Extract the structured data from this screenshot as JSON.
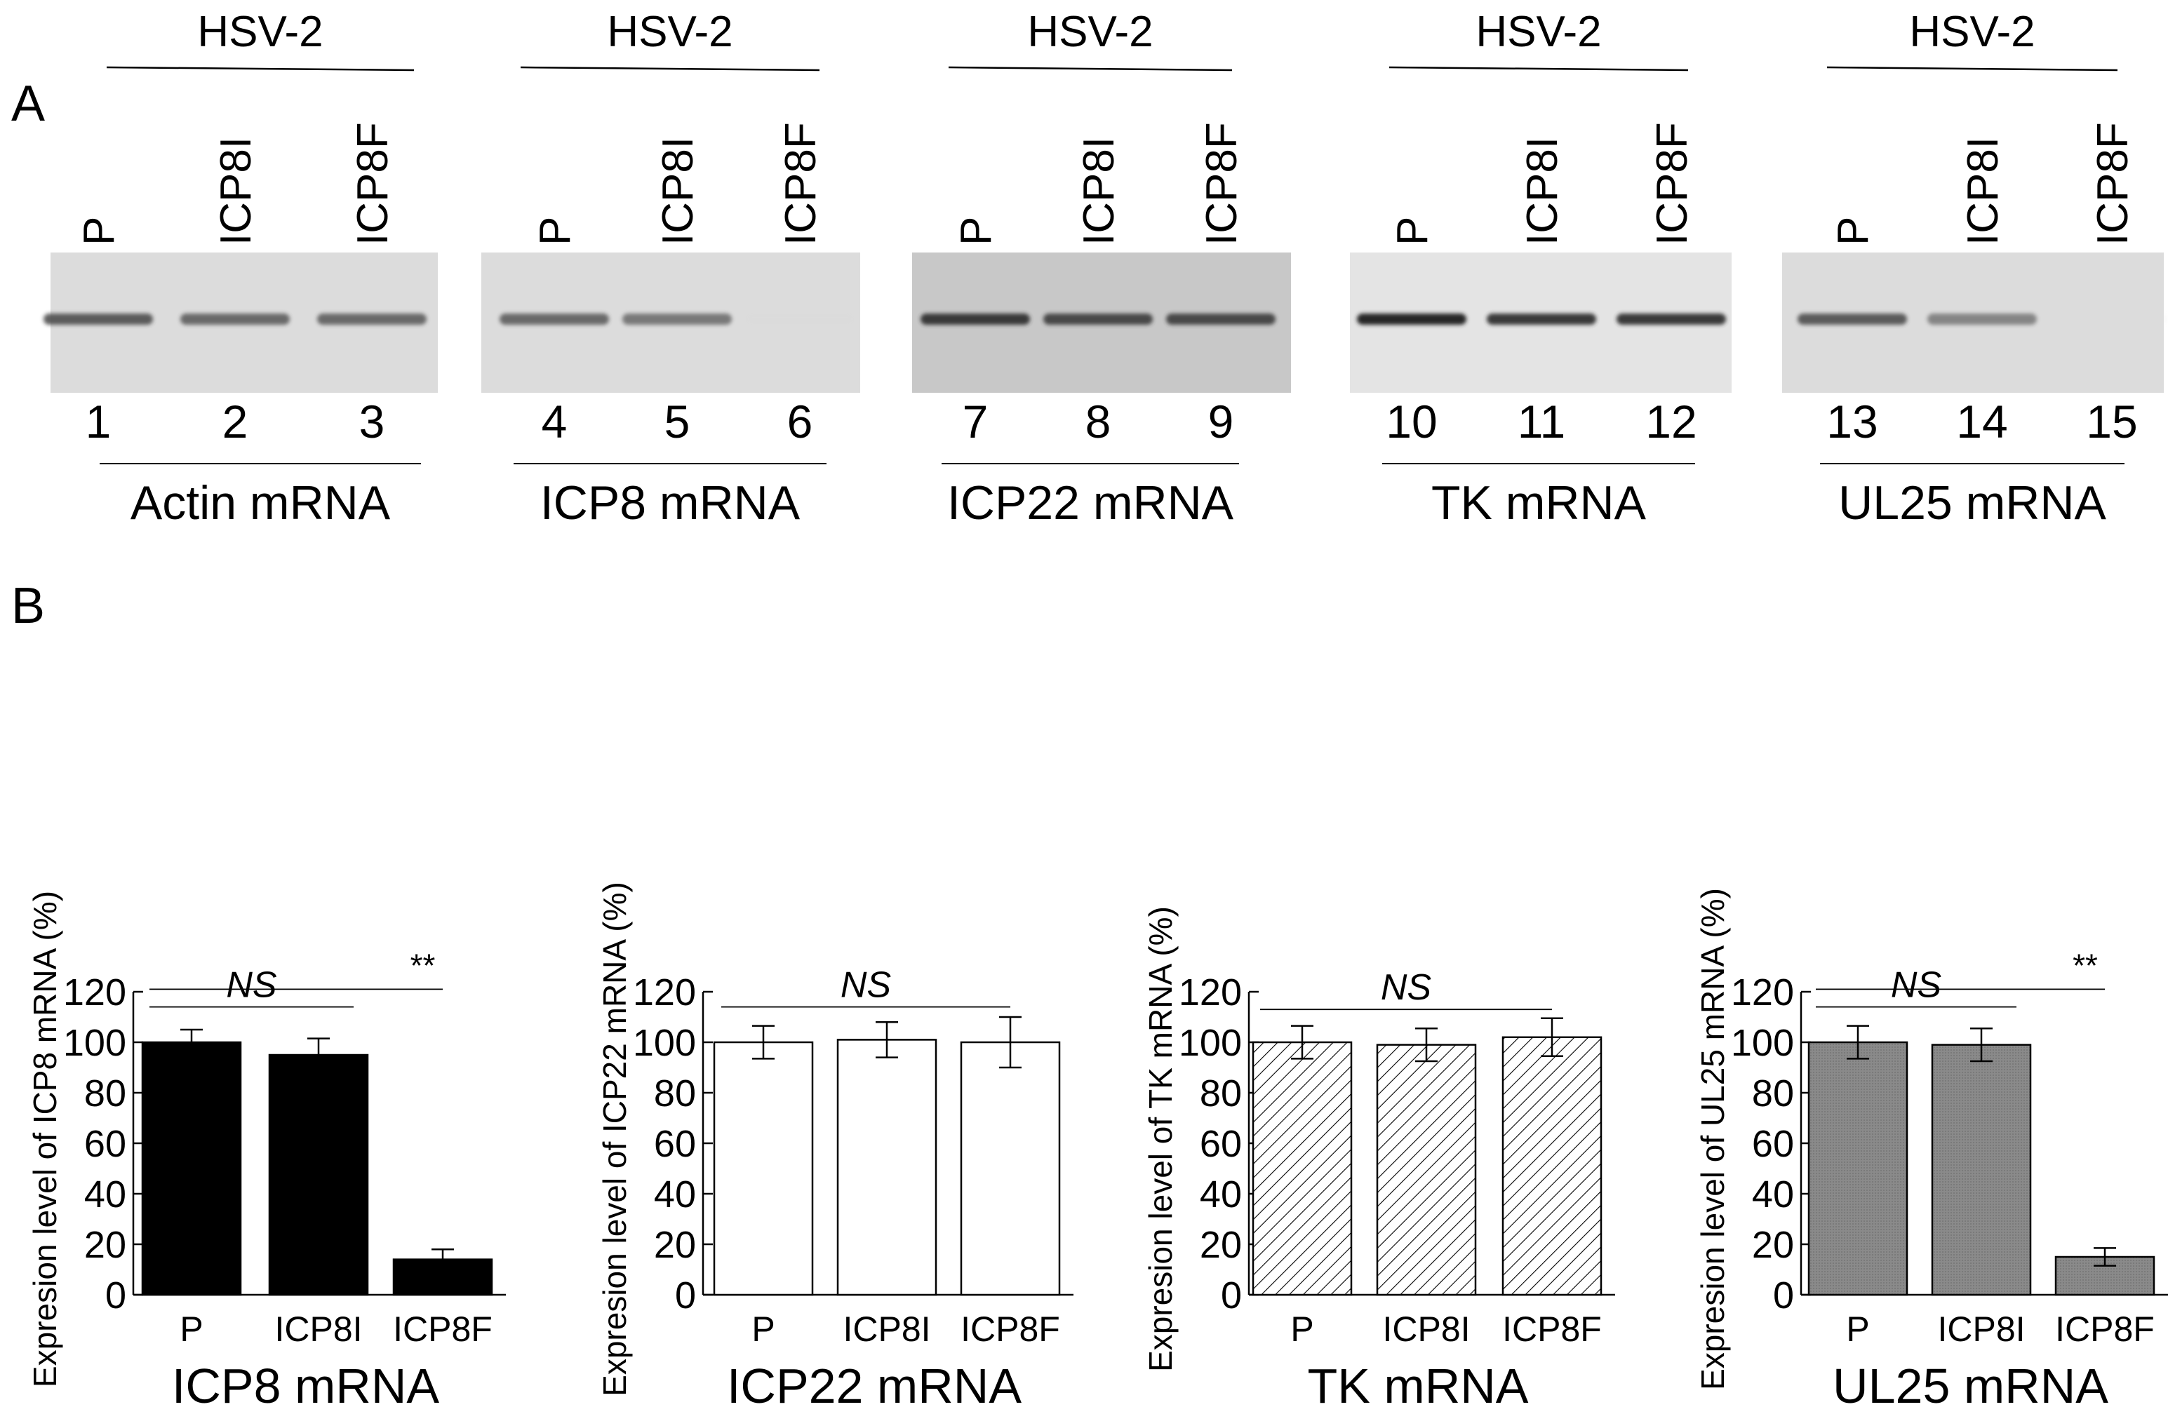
{
  "panel_labels": {
    "a": "A",
    "b": "B"
  },
  "gels": [
    {
      "group_label": "HSV-2",
      "lanes": [
        "P",
        "ICP8I",
        "ICP8F"
      ],
      "lane_numbers": [
        "1",
        "2",
        "3"
      ],
      "caption": "Actin mRNA",
      "band_intensity": [
        0.85,
        0.8,
        0.8
      ]
    },
    {
      "group_label": "HSV-2",
      "lanes": [
        "P",
        "ICP8I",
        "ICP8F"
      ],
      "lane_numbers": [
        "4",
        "5",
        "6"
      ],
      "caption": "ICP8 mRNA",
      "band_intensity": [
        0.8,
        0.75,
        0.08
      ]
    },
    {
      "group_label": "HSV-2",
      "lanes": [
        "P",
        "ICP8I",
        "ICP8F"
      ],
      "lane_numbers": [
        "7",
        "8",
        "9"
      ],
      "caption": "ICP22 mRNA",
      "band_intensity": [
        0.95,
        0.9,
        0.9
      ]
    },
    {
      "group_label": "HSV-2",
      "lanes": [
        "P",
        "ICP8I",
        "ICP8F"
      ],
      "lane_numbers": [
        "10",
        "11",
        "12"
      ],
      "caption": "TK mRNA",
      "band_intensity": [
        1.0,
        0.95,
        0.95
      ]
    },
    {
      "group_label": "HSV-2",
      "lanes": [
        "P",
        "ICP8I",
        "ICP8F"
      ],
      "lane_numbers": [
        "13",
        "14",
        "15"
      ],
      "caption": "UL25 mRNA",
      "band_intensity": [
        0.85,
        0.7,
        0.05
      ]
    }
  ],
  "chart_data": [
    {
      "type": "bar",
      "title": "ICP8 mRNA",
      "xlabel": "",
      "ylabel": "Expresion level of ICP8 mRNA (%)",
      "categories": [
        "P",
        "ICP8I",
        "ICP8F"
      ],
      "values": [
        100,
        95,
        14
      ],
      "errors": [
        5,
        6.5,
        4
      ],
      "ylim": [
        0,
        120
      ],
      "yticks": [
        0,
        20,
        40,
        60,
        80,
        100,
        120
      ],
      "bar_style": "black",
      "fill_color": "#000000",
      "annotations": [
        {
          "text": "NS",
          "from": 0,
          "to": 1,
          "level": 114
        },
        {
          "text": "**",
          "from": 0,
          "to": 2,
          "level": 121
        }
      ]
    },
    {
      "type": "bar",
      "title": "ICP22 mRNA",
      "xlabel": "",
      "ylabel": "Expresion level of ICP22 mRNA (%)",
      "categories": [
        "P",
        "ICP8I",
        "ICP8F"
      ],
      "values": [
        100,
        101,
        100
      ],
      "errors": [
        6.5,
        7,
        10
      ],
      "ylim": [
        0,
        120
      ],
      "yticks": [
        0,
        20,
        40,
        60,
        80,
        100,
        120
      ],
      "bar_style": "white",
      "fill_color": "#ffffff",
      "annotations": [
        {
          "text": "NS",
          "from": 0,
          "to": 2,
          "level": 114
        }
      ]
    },
    {
      "type": "bar",
      "title": "TK mRNA",
      "xlabel": "",
      "ylabel": "Expresion level of TK mRNA (%)",
      "categories": [
        "P",
        "ICP8I",
        "ICP8F"
      ],
      "values": [
        100,
        99,
        102
      ],
      "errors": [
        6.5,
        6.5,
        7.5
      ],
      "ylim": [
        0,
        120
      ],
      "yticks": [
        0,
        20,
        40,
        60,
        80,
        100,
        120
      ],
      "bar_style": "hatched",
      "fill_color": "#ffffff",
      "annotations": [
        {
          "text": "NS",
          "from": 0,
          "to": 2,
          "level": 113
        }
      ]
    },
    {
      "type": "bar",
      "title": "UL25 mRNA",
      "xlabel": "",
      "ylabel": "Expresion level of UL25 mRNA (%)",
      "categories": [
        "P",
        "ICP8I",
        "ICP8F"
      ],
      "values": [
        100,
        99,
        15
      ],
      "errors": [
        6.5,
        6.5,
        3.5
      ],
      "ylim": [
        0,
        120
      ],
      "yticks": [
        0,
        20,
        40,
        60,
        80,
        100,
        120
      ],
      "bar_style": "gray",
      "fill_color": "#8c8c8c",
      "annotations": [
        {
          "text": "NS",
          "from": 0,
          "to": 1,
          "level": 114
        },
        {
          "text": "**",
          "from": 0,
          "to": 2,
          "level": 121
        }
      ]
    }
  ]
}
